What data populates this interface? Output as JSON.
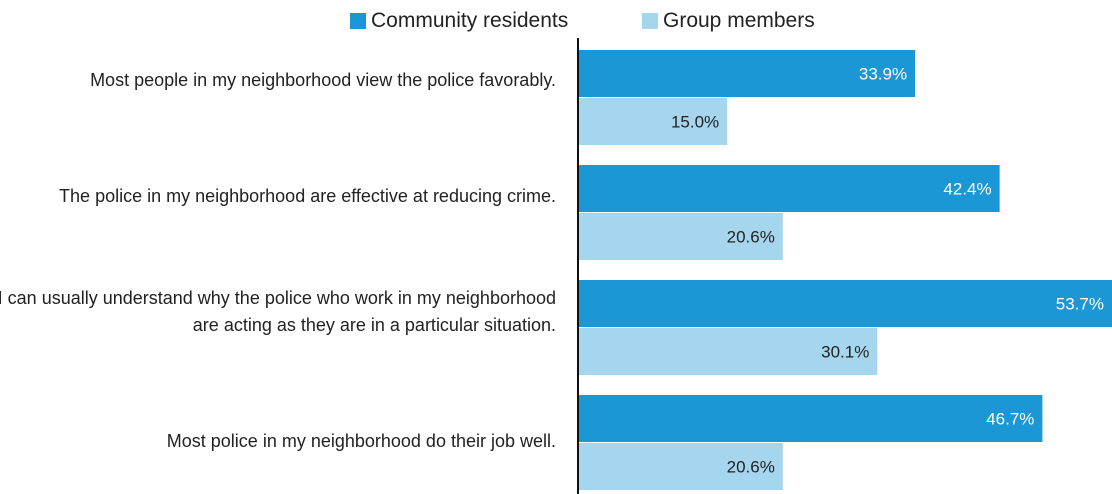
{
  "chart_data": {
    "type": "bar",
    "orientation": "horizontal",
    "categories": [
      "Most people in my neighborhood view the police favorably.",
      "The police in my neighborhood are effective at reducing crime.",
      "I can usually understand why the police who work in my neighborhood are acting as they are in a particular situation.",
      "Most police in my neighborhood do their job well."
    ],
    "series": [
      {
        "name": "Community residents",
        "values": [
          33.9,
          42.4,
          53.7,
          46.7
        ],
        "labels": [
          "33.9%",
          "42.4%",
          "53.7%",
          "46.7%"
        ],
        "color": "#1b97d5",
        "label_color": "#ffffff"
      },
      {
        "name": "Group members",
        "values": [
          15.0,
          20.6,
          30.1,
          20.6
        ],
        "labels": [
          "15.0%",
          "20.6%",
          "30.1%",
          "20.6%"
        ],
        "color": "#a6d6ee",
        "label_color": "#222222"
      }
    ],
    "value_unit": "%",
    "xlim": [
      0,
      53.7
    ],
    "grid": false,
    "legend": "top-center",
    "axis_color": "#111111"
  }
}
